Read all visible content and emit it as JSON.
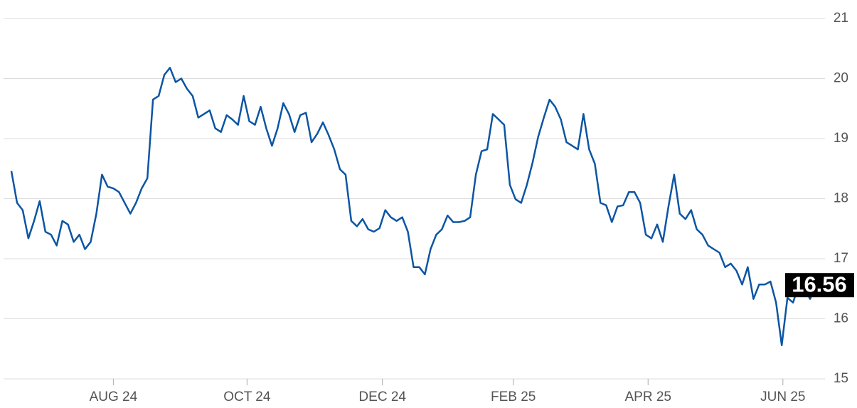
{
  "chart_data": {
    "type": "line",
    "color": "#0b55a3",
    "values": [
      18.46,
      17.93,
      17.81,
      17.34,
      17.63,
      17.96,
      17.45,
      17.4,
      17.22,
      17.63,
      17.57,
      17.28,
      17.4,
      17.16,
      17.28,
      17.75,
      18.4,
      18.2,
      18.17,
      18.11,
      17.93,
      17.75,
      17.93,
      18.17,
      18.34,
      19.65,
      19.71,
      20.06,
      20.18,
      19.94,
      20.0,
      19.83,
      19.71,
      19.35,
      19.41,
      19.47,
      19.17,
      19.11,
      19.39,
      19.32,
      19.23,
      19.71,
      19.29,
      19.23,
      19.53,
      19.17,
      18.88,
      19.17,
      19.59,
      19.41,
      19.11,
      19.39,
      19.43,
      18.94,
      19.08,
      19.27,
      19.06,
      18.82,
      18.49,
      18.4,
      17.63,
      17.54,
      17.66,
      17.49,
      17.45,
      17.51,
      17.81,
      17.69,
      17.63,
      17.69,
      17.45,
      16.86,
      16.86,
      16.74,
      17.16,
      17.4,
      17.49,
      17.72,
      17.61,
      17.61,
      17.63,
      17.69,
      18.4,
      18.79,
      18.82,
      19.41,
      19.32,
      19.23,
      18.23,
      17.99,
      17.93,
      18.23,
      18.6,
      19.03,
      19.35,
      19.65,
      19.53,
      19.32,
      18.94,
      18.88,
      18.82,
      19.41,
      18.82,
      18.58,
      17.93,
      17.89,
      17.61,
      17.87,
      17.89,
      18.11,
      18.11,
      17.93,
      17.4,
      17.34,
      17.57,
      17.28,
      17.87,
      18.4,
      17.75,
      17.66,
      17.81,
      17.49,
      17.4,
      17.22,
      17.16,
      17.1,
      16.86,
      16.92,
      16.8,
      16.57,
      16.86,
      16.33,
      16.57,
      16.57,
      16.62,
      16.27,
      15.56,
      16.35,
      16.27,
      16.57,
      16.51,
      16.33,
      16.56
    ],
    "xlim": [
      0,
      142
    ],
    "xticks": [
      {
        "value": 18,
        "label": "AUG 24"
      },
      {
        "value": 41.6,
        "label": "OCT 24"
      },
      {
        "value": 65.5,
        "label": "DEC 24"
      },
      {
        "value": 88.6,
        "label": "FEB 25"
      },
      {
        "value": 112.4,
        "label": "APR 25"
      },
      {
        "value": 136.2,
        "label": "JUN 25"
      }
    ],
    "ylim": [
      15,
      21
    ],
    "yticks": [
      15,
      16,
      17,
      18,
      19,
      20,
      21
    ],
    "grid": true
  }
}
